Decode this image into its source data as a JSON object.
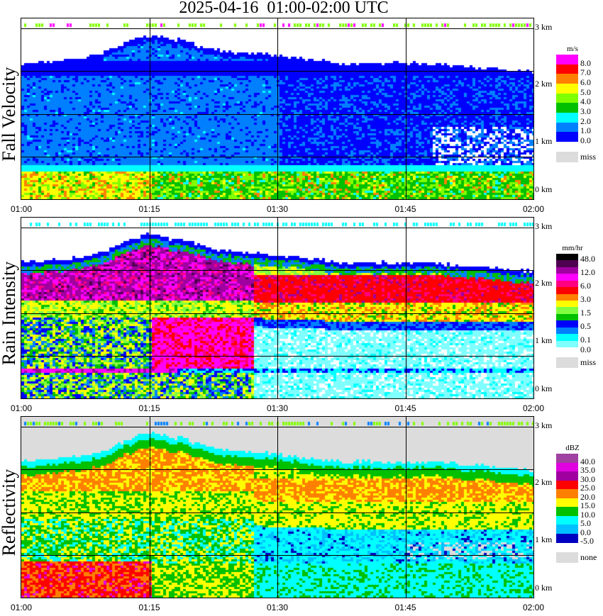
{
  "chart_data": {
    "type": "heatmap",
    "title": "2025-04-16  01:00-02:00 UTC",
    "x_ticks": [
      "01:00",
      "01:15",
      "01:30",
      "01:45",
      "02:00"
    ],
    "y_ticks": [
      "0 km",
      "1 km",
      "2 km",
      "3 km"
    ],
    "ylim_km": [
      0,
      3.15
    ],
    "grid": true,
    "panels": [
      {
        "name": "fall-velocity",
        "ylabel": "Fall Velocity",
        "unit": "m/s",
        "colors": [
          "#ff00ff",
          "#ff0000",
          "#ff8000",
          "#ffff00",
          "#80ff00",
          "#00c000",
          "#00ffff",
          "#0080ff",
          "#0000ff"
        ],
        "labels": [
          "8.0",
          "7.0",
          "6.0",
          "5.0",
          "4.0",
          "3.0",
          "2.0",
          "1.0",
          "0.0"
        ],
        "miss_label": "miss",
        "miss_color": "#dcdcdc"
      },
      {
        "name": "rain-intensity",
        "ylabel": "Rain Intensity",
        "unit": "mm/hr",
        "colors": [
          "#000000",
          "#500050",
          "#a000a0",
          "#ff00ff",
          "#ff0080",
          "#ff0000",
          "#ff8000",
          "#ffff00",
          "#80ff40",
          "#00c000",
          "#0000ff",
          "#0080ff",
          "#00ffff",
          "#80ffff"
        ],
        "labels": [
          "48.0",
          "12.0",
          "6.0",
          "3.0",
          "1.5",
          "0.5",
          "0.1",
          "0.0"
        ],
        "miss_label": "miss",
        "miss_color": "#dcdcdc"
      },
      {
        "name": "reflectivity",
        "ylabel": "Reflectivity",
        "unit": "dBZ",
        "colors": [
          "#a040a0",
          "#e000e0",
          "#a000a0",
          "#ff0000",
          "#ff8000",
          "#ffff00",
          "#00c000",
          "#00ffff",
          "#00c0ff",
          "#0000c0"
        ],
        "labels": [
          "40.0",
          "35.0",
          "30.0",
          "25.0",
          "20.0",
          "15.0",
          "10.0",
          "5.0",
          "0.0",
          "-5.0"
        ],
        "miss_label": "none",
        "miss_color": "#dcdcdc"
      }
    ]
  }
}
